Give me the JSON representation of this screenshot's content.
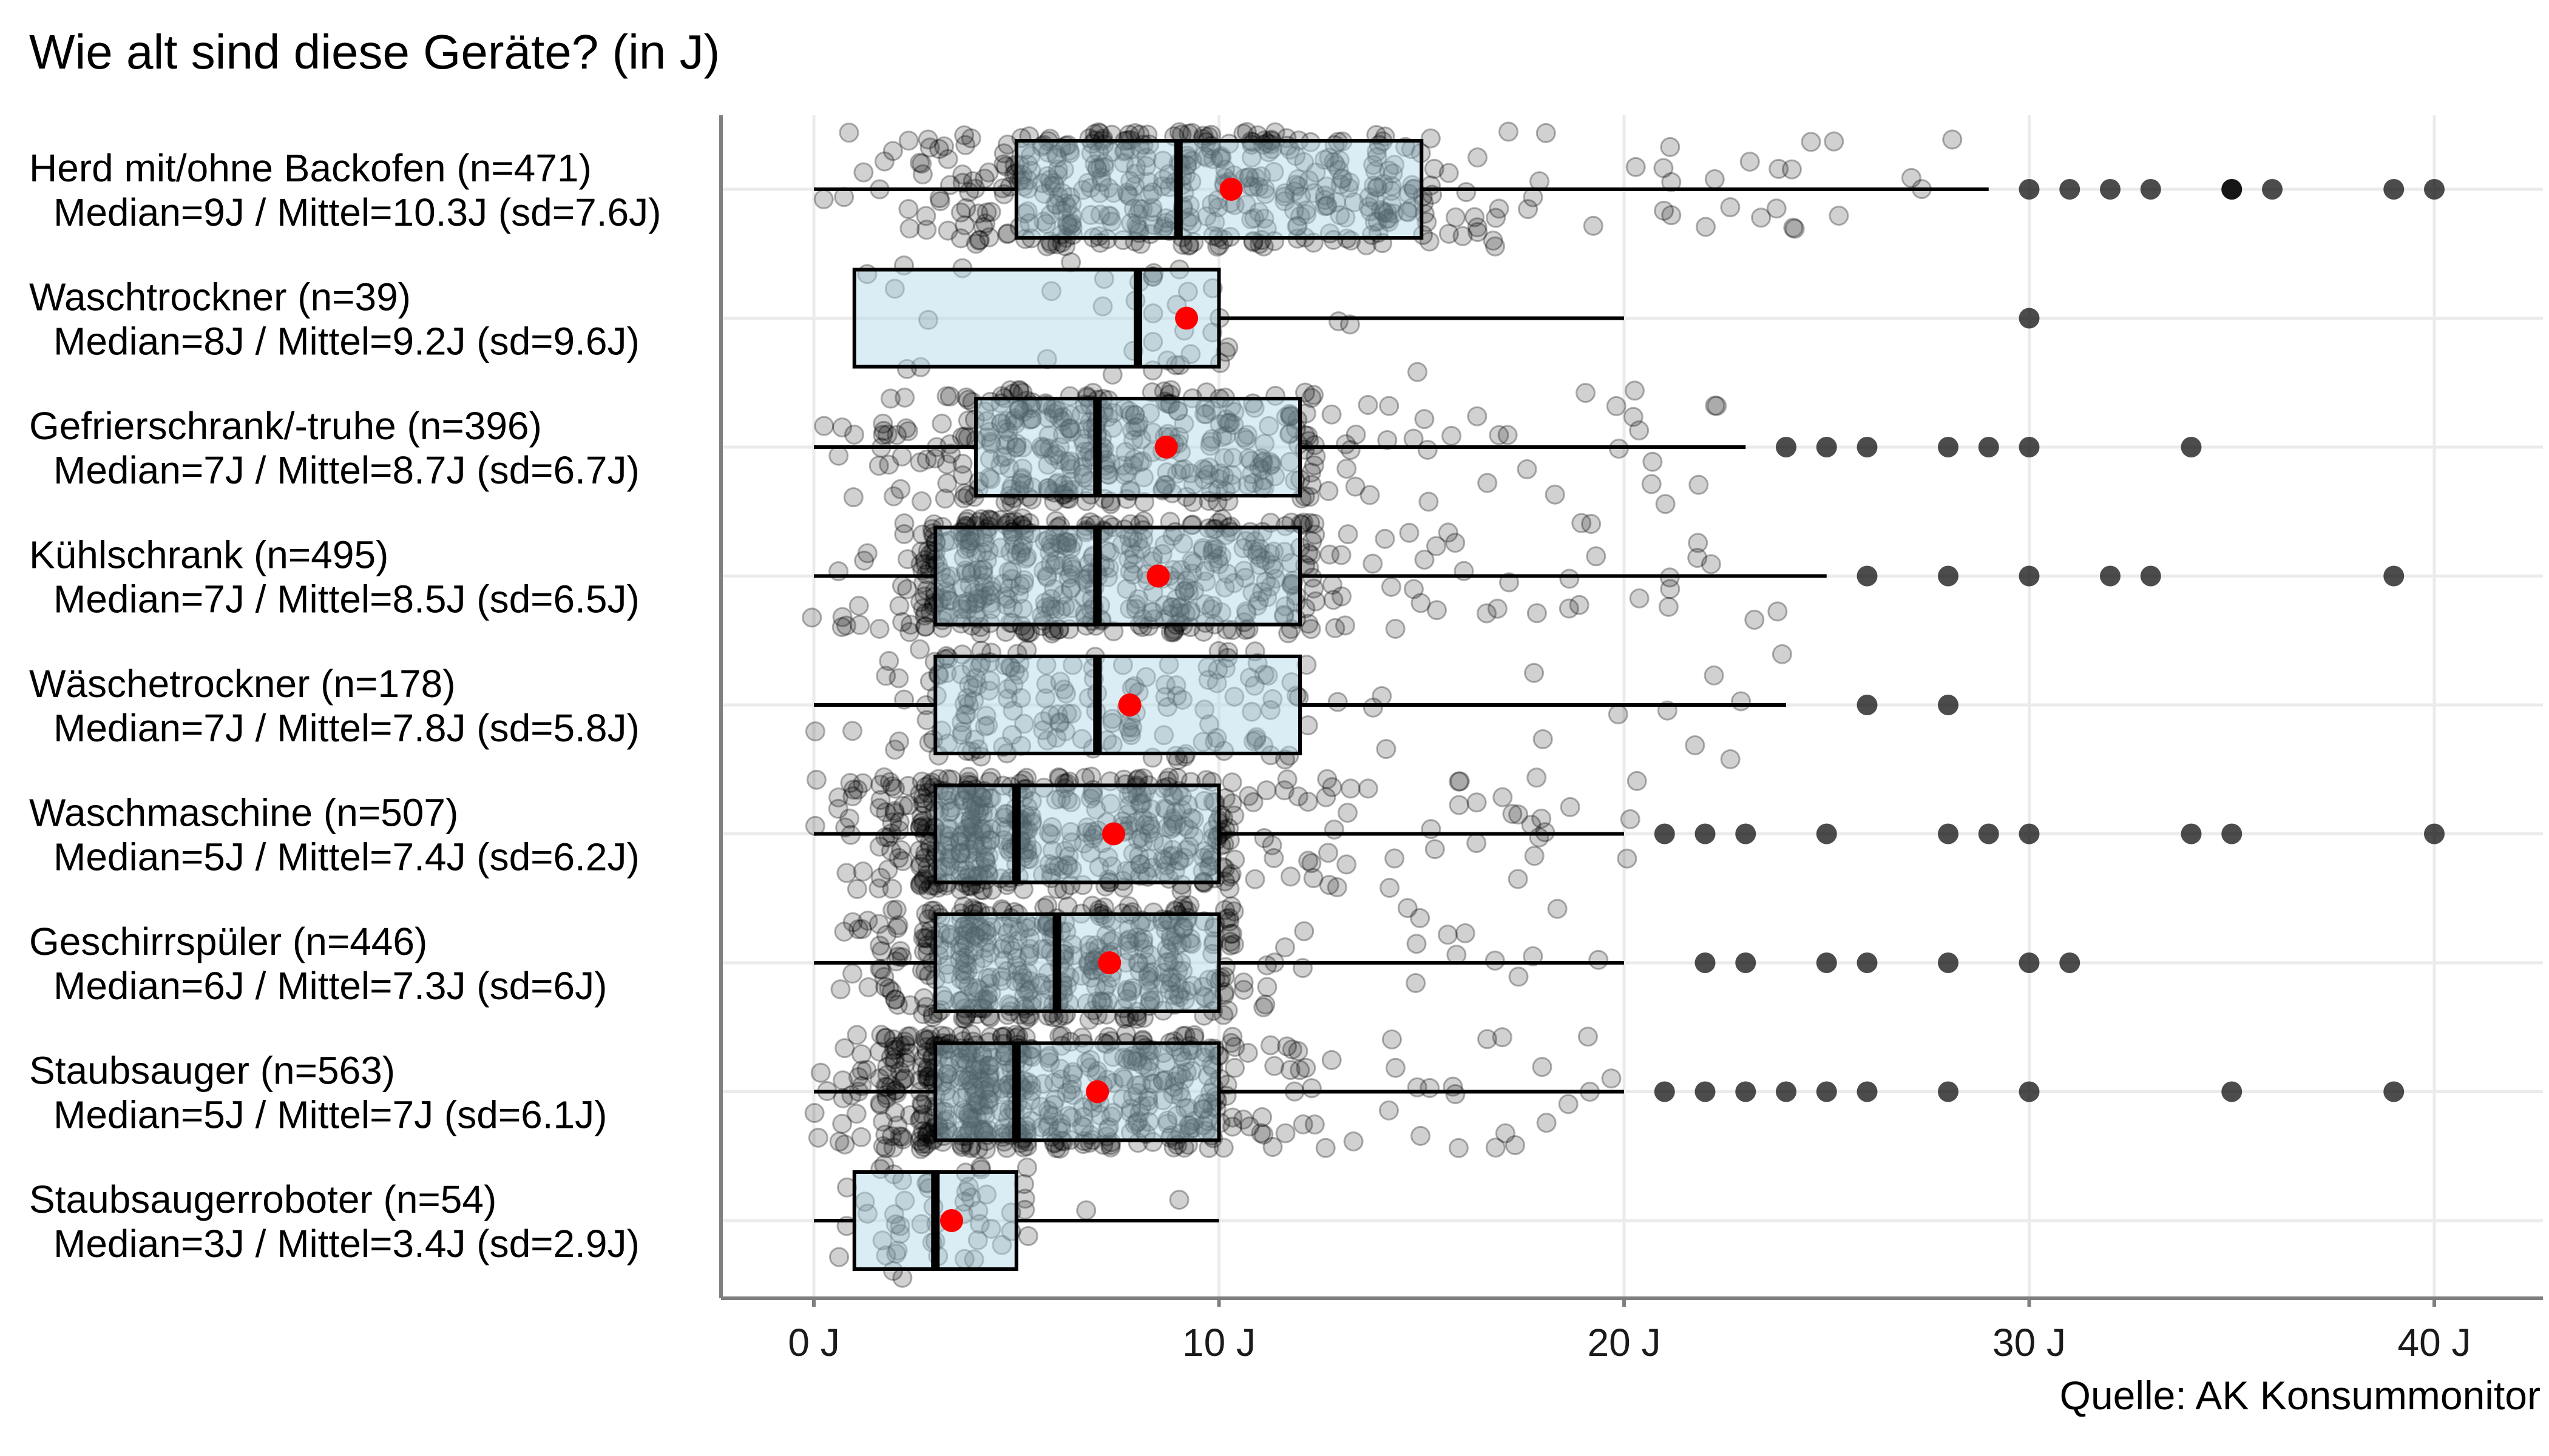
{
  "title": "Wie alt sind diese Geräte? (in J)",
  "caption": "Quelle: AK Konsummonitor",
  "colors": {
    "box_fill": "#add8e6",
    "mean": "#ff0000",
    "grid": "#ebebeb",
    "axis": "#7f7f7f",
    "point": "#000000"
  },
  "chart_data": {
    "type": "boxplot",
    "orientation": "horizontal",
    "title": "Wie alt sind diese Geräte? (in J)",
    "xlabel": "",
    "ylabel": "",
    "xlim": [
      -2.4,
      42.5
    ],
    "x_ticks": [
      0,
      10,
      20,
      30,
      40
    ],
    "x_tick_labels": [
      "0 J",
      "10 J",
      "20 J",
      "30 J",
      "40 J"
    ],
    "grid": true,
    "series": [
      {
        "name": "Herd mit/ohne Backofen (n=471)",
        "stats_label": "Median=9J / Mittel=10.3J (sd=7.6J)",
        "n": 471,
        "whisker_low": 0,
        "q1": 5,
        "median": 9,
        "q3": 15,
        "whisker_high": 29,
        "mean": 10.3,
        "outliers": [
          30,
          31,
          32,
          33,
          35,
          35,
          36,
          39,
          40
        ]
      },
      {
        "name": "Waschtrockner (n=39)",
        "stats_label": "Median=8J / Mittel=9.2J (sd=9.6J)",
        "n": 39,
        "whisker_low": 1,
        "q1": 1,
        "median": 8,
        "q3": 10,
        "whisker_high": 20,
        "mean": 9.2,
        "outliers": [
          30
        ]
      },
      {
        "name": "Gefrierschrank/-truhe (n=396)",
        "stats_label": "Median=7J / Mittel=8.7J (sd=6.7J)",
        "n": 396,
        "whisker_low": 0,
        "q1": 4,
        "median": 7,
        "q3": 12,
        "whisker_high": 23,
        "mean": 8.7,
        "outliers": [
          24,
          25,
          26,
          28,
          29,
          30,
          34
        ]
      },
      {
        "name": "Kühlschrank (n=495)",
        "stats_label": "Median=7J / Mittel=8.5J (sd=6.5J)",
        "n": 495,
        "whisker_low": 0,
        "q1": 3,
        "median": 7,
        "q3": 12,
        "whisker_high": 25,
        "mean": 8.5,
        "outliers": [
          26,
          28,
          30,
          32,
          33,
          39
        ]
      },
      {
        "name": "Wäschetrockner (n=178)",
        "stats_label": "Median=7J / Mittel=7.8J (sd=5.8J)",
        "n": 178,
        "whisker_low": 0,
        "q1": 3,
        "median": 7,
        "q3": 12,
        "whisker_high": 24,
        "mean": 7.8,
        "outliers": [
          26,
          28
        ]
      },
      {
        "name": "Waschmaschine (n=507)",
        "stats_label": "Median=5J / Mittel=7.4J (sd=6.2J)",
        "n": 507,
        "whisker_low": 0,
        "q1": 3,
        "median": 5,
        "q3": 10,
        "whisker_high": 20,
        "mean": 7.4,
        "outliers": [
          21,
          22,
          23,
          25,
          28,
          29,
          30,
          34,
          35,
          40
        ]
      },
      {
        "name": "Geschirrspüler (n=446)",
        "stats_label": "Median=6J / Mittel=7.3J (sd=6J)",
        "n": 446,
        "whisker_low": 0,
        "q1": 3,
        "median": 6,
        "q3": 10,
        "whisker_high": 20,
        "mean": 7.3,
        "outliers": [
          22,
          23,
          25,
          26,
          28,
          30,
          31
        ]
      },
      {
        "name": "Staubsauger (n=563)",
        "stats_label": "Median=5J / Mittel=7J (sd=6.1J)",
        "n": 563,
        "whisker_low": 0,
        "q1": 3,
        "median": 5,
        "q3": 10,
        "whisker_high": 20,
        "mean": 7.0,
        "outliers": [
          21,
          22,
          23,
          24,
          25,
          26,
          28,
          30,
          35,
          39
        ]
      },
      {
        "name": "Staubsaugerroboter (n=54)",
        "stats_label": "Median=3J / Mittel=3.4J (sd=2.9J)",
        "n": 54,
        "whisker_low": 0,
        "q1": 1,
        "median": 3,
        "q3": 5,
        "whisker_high": 10,
        "mean": 3.4,
        "outliers": []
      }
    ]
  }
}
